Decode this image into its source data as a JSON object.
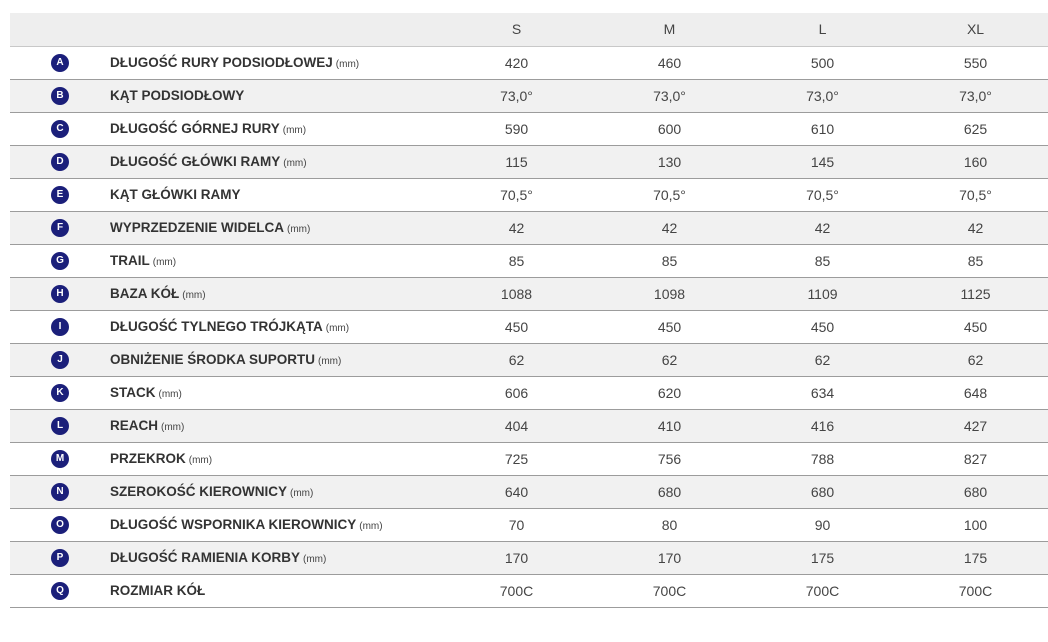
{
  "table": {
    "headers": [
      "",
      "",
      "S",
      "M",
      "L",
      "XL"
    ],
    "rows": [
      {
        "letter": "A",
        "label": "DŁUGOŚĆ RURY PODSIODŁOWEJ",
        "unit": "(mm)",
        "values": [
          "420",
          "460",
          "500",
          "550"
        ]
      },
      {
        "letter": "B",
        "label": "KĄT PODSIODŁOWY",
        "unit": "",
        "values": [
          "73,0°",
          "73,0°",
          "73,0°",
          "73,0°"
        ]
      },
      {
        "letter": "C",
        "label": "DŁUGOŚĆ GÓRNEJ RURY",
        "unit": "(mm)",
        "values": [
          "590",
          "600",
          "610",
          "625"
        ]
      },
      {
        "letter": "D",
        "label": "DŁUGOŚĆ GŁÓWKI RAMY",
        "unit": "(mm)",
        "values": [
          "115",
          "130",
          "145",
          "160"
        ]
      },
      {
        "letter": "E",
        "label": "KĄT GŁÓWKI RAMY",
        "unit": "",
        "values": [
          "70,5°",
          "70,5°",
          "70,5°",
          "70,5°"
        ]
      },
      {
        "letter": "F",
        "label": "WYPRZEDZENIE WIDELCA",
        "unit": "(mm)",
        "values": [
          "42",
          "42",
          "42",
          "42"
        ]
      },
      {
        "letter": "G",
        "label": "TRAIL",
        "unit": "(mm)",
        "values": [
          "85",
          "85",
          "85",
          "85"
        ]
      },
      {
        "letter": "H",
        "label": "BAZA KÓŁ",
        "unit": "(mm)",
        "values": [
          "1088",
          "1098",
          "1109",
          "1125"
        ]
      },
      {
        "letter": "I",
        "label": "DŁUGOŚĆ TYLNEGO TRÓJKĄTA",
        "unit": "(mm)",
        "values": [
          "450",
          "450",
          "450",
          "450"
        ]
      },
      {
        "letter": "J",
        "label": "OBNIŻENIE ŚRODKA SUPORTU",
        "unit": "(mm)",
        "values": [
          "62",
          "62",
          "62",
          "62"
        ]
      },
      {
        "letter": "K",
        "label": "STACK",
        "unit": "(mm)",
        "values": [
          "606",
          "620",
          "634",
          "648"
        ]
      },
      {
        "letter": "L",
        "label": "REACH",
        "unit": "(mm)",
        "values": [
          "404",
          "410",
          "416",
          "427"
        ]
      },
      {
        "letter": "M",
        "label": "PRZEKROK",
        "unit": "(mm)",
        "values": [
          "725",
          "756",
          "788",
          "827"
        ]
      },
      {
        "letter": "N",
        "label": "SZEROKOŚĆ KIEROWNICY",
        "unit": "(mm)",
        "values": [
          "640",
          "680",
          "680",
          "680"
        ]
      },
      {
        "letter": "O",
        "label": "DŁUGOŚĆ WSPORNIKA KIEROWNICY",
        "unit": "(mm)",
        "values": [
          "70",
          "80",
          "90",
          "100"
        ]
      },
      {
        "letter": "P",
        "label": "DŁUGOŚĆ RAMIENIA KORBY",
        "unit": "(mm)",
        "values": [
          "170",
          "170",
          "175",
          "175"
        ]
      },
      {
        "letter": "Q",
        "label": "ROZMIAR KÓŁ",
        "unit": "",
        "values": [
          "700C",
          "700C",
          "700C",
          "700C"
        ]
      }
    ]
  },
  "colors": {
    "badge": "#1b1f7a",
    "header_bg": "#eeeeee",
    "row_alt_bg": "#f1f1f1"
  }
}
